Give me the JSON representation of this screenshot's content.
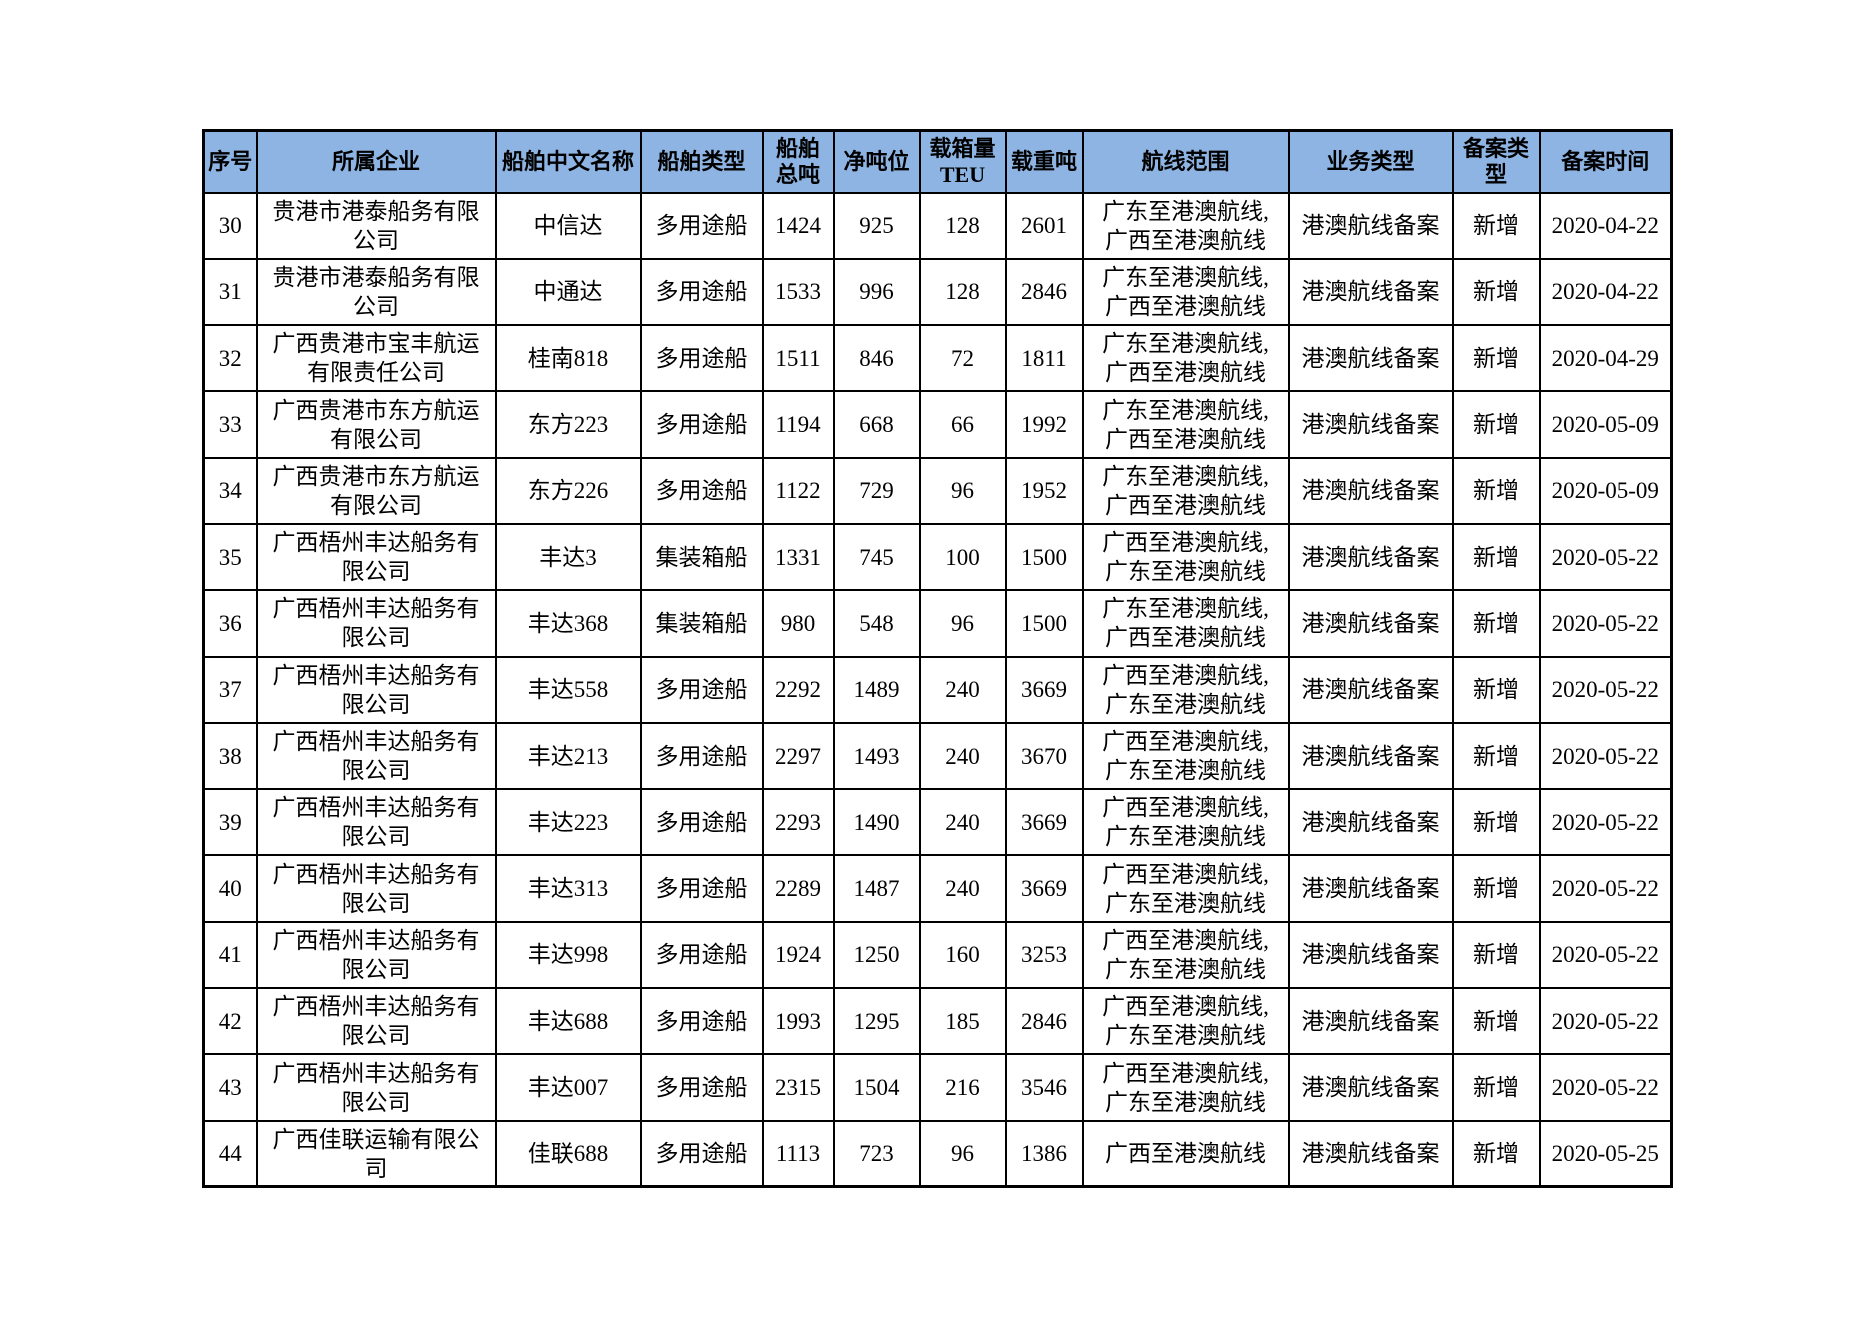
{
  "colors": {
    "header_background": "#8db4e2",
    "grid_border": "#000000",
    "page_background": "#ffffff",
    "text": "#000000"
  },
  "table": {
    "columns": [
      {
        "key": "index",
        "label": "序号"
      },
      {
        "key": "company",
        "label": "所属企业"
      },
      {
        "key": "ship_name",
        "label": "船舶中文名称"
      },
      {
        "key": "ship_type",
        "label": "船舶类型"
      },
      {
        "key": "gross_tonnage",
        "label": "船舶\n总吨"
      },
      {
        "key": "net_tonnage",
        "label": "净吨位"
      },
      {
        "key": "teu",
        "label": "载箱量\nTEU"
      },
      {
        "key": "deadweight",
        "label": "载重吨"
      },
      {
        "key": "route",
        "label": "航线范围"
      },
      {
        "key": "business_type",
        "label": "业务类型"
      },
      {
        "key": "filing_type",
        "label": "备案类\n型"
      },
      {
        "key": "filing_date",
        "label": "备案时间"
      }
    ],
    "rows": [
      {
        "index": "30",
        "company": "贵港市港泰船务有限\n公司",
        "ship_name": "中信达",
        "ship_type": "多用途船",
        "gross_tonnage": "1424",
        "net_tonnage": "925",
        "teu": "128",
        "deadweight": "2601",
        "route": "广东至港澳航线,\n广西至港澳航线",
        "business_type": "港澳航线备案",
        "filing_type": "新增",
        "filing_date": "2020-04-22"
      },
      {
        "index": "31",
        "company": "贵港市港泰船务有限\n公司",
        "ship_name": "中通达",
        "ship_type": "多用途船",
        "gross_tonnage": "1533",
        "net_tonnage": "996",
        "teu": "128",
        "deadweight": "2846",
        "route": "广东至港澳航线,\n广西至港澳航线",
        "business_type": "港澳航线备案",
        "filing_type": "新增",
        "filing_date": "2020-04-22"
      },
      {
        "index": "32",
        "company": "广西贵港市宝丰航运\n有限责任公司",
        "ship_name": "桂南818",
        "ship_type": "多用途船",
        "gross_tonnage": "1511",
        "net_tonnage": "846",
        "teu": "72",
        "deadweight": "1811",
        "route": "广东至港澳航线,\n广西至港澳航线",
        "business_type": "港澳航线备案",
        "filing_type": "新增",
        "filing_date": "2020-04-29"
      },
      {
        "index": "33",
        "company": "广西贵港市东方航运\n有限公司",
        "ship_name": "东方223",
        "ship_type": "多用途船",
        "gross_tonnage": "1194",
        "net_tonnage": "668",
        "teu": "66",
        "deadweight": "1992",
        "route": "广东至港澳航线,\n广西至港澳航线",
        "business_type": "港澳航线备案",
        "filing_type": "新增",
        "filing_date": "2020-05-09"
      },
      {
        "index": "34",
        "company": "广西贵港市东方航运\n有限公司",
        "ship_name": "东方226",
        "ship_type": "多用途船",
        "gross_tonnage": "1122",
        "net_tonnage": "729",
        "teu": "96",
        "deadweight": "1952",
        "route": "广东至港澳航线,\n广西至港澳航线",
        "business_type": "港澳航线备案",
        "filing_type": "新增",
        "filing_date": "2020-05-09"
      },
      {
        "index": "35",
        "company": "广西梧州丰达船务有\n限公司",
        "ship_name": "丰达3",
        "ship_type": "集装箱船",
        "gross_tonnage": "1331",
        "net_tonnage": "745",
        "teu": "100",
        "deadweight": "1500",
        "route": "广西至港澳航线,\n广东至港澳航线",
        "business_type": "港澳航线备案",
        "filing_type": "新增",
        "filing_date": "2020-05-22"
      },
      {
        "index": "36",
        "company": "广西梧州丰达船务有\n限公司",
        "ship_name": "丰达368",
        "ship_type": "集装箱船",
        "gross_tonnage": "980",
        "net_tonnage": "548",
        "teu": "96",
        "deadweight": "1500",
        "route": "广东至港澳航线,\n广西至港澳航线",
        "business_type": "港澳航线备案",
        "filing_type": "新增",
        "filing_date": "2020-05-22"
      },
      {
        "index": "37",
        "company": "广西梧州丰达船务有\n限公司",
        "ship_name": "丰达558",
        "ship_type": "多用途船",
        "gross_tonnage": "2292",
        "net_tonnage": "1489",
        "teu": "240",
        "deadweight": "3669",
        "route": "广西至港澳航线,\n广东至港澳航线",
        "business_type": "港澳航线备案",
        "filing_type": "新增",
        "filing_date": "2020-05-22"
      },
      {
        "index": "38",
        "company": "广西梧州丰达船务有\n限公司",
        "ship_name": "丰达213",
        "ship_type": "多用途船",
        "gross_tonnage": "2297",
        "net_tonnage": "1493",
        "teu": "240",
        "deadweight": "3670",
        "route": "广西至港澳航线,\n广东至港澳航线",
        "business_type": "港澳航线备案",
        "filing_type": "新增",
        "filing_date": "2020-05-22"
      },
      {
        "index": "39",
        "company": "广西梧州丰达船务有\n限公司",
        "ship_name": "丰达223",
        "ship_type": "多用途船",
        "gross_tonnage": "2293",
        "net_tonnage": "1490",
        "teu": "240",
        "deadweight": "3669",
        "route": "广西至港澳航线,\n广东至港澳航线",
        "business_type": "港澳航线备案",
        "filing_type": "新增",
        "filing_date": "2020-05-22"
      },
      {
        "index": "40",
        "company": "广西梧州丰达船务有\n限公司",
        "ship_name": "丰达313",
        "ship_type": "多用途船",
        "gross_tonnage": "2289",
        "net_tonnage": "1487",
        "teu": "240",
        "deadweight": "3669",
        "route": "广西至港澳航线,\n广东至港澳航线",
        "business_type": "港澳航线备案",
        "filing_type": "新增",
        "filing_date": "2020-05-22"
      },
      {
        "index": "41",
        "company": "广西梧州丰达船务有\n限公司",
        "ship_name": "丰达998",
        "ship_type": "多用途船",
        "gross_tonnage": "1924",
        "net_tonnage": "1250",
        "teu": "160",
        "deadweight": "3253",
        "route": "广西至港澳航线,\n广东至港澳航线",
        "business_type": "港澳航线备案",
        "filing_type": "新增",
        "filing_date": "2020-05-22"
      },
      {
        "index": "42",
        "company": "广西梧州丰达船务有\n限公司",
        "ship_name": "丰达688",
        "ship_type": "多用途船",
        "gross_tonnage": "1993",
        "net_tonnage": "1295",
        "teu": "185",
        "deadweight": "2846",
        "route": "广西至港澳航线,\n广东至港澳航线",
        "business_type": "港澳航线备案",
        "filing_type": "新增",
        "filing_date": "2020-05-22"
      },
      {
        "index": "43",
        "company": "广西梧州丰达船务有\n限公司",
        "ship_name": "丰达007",
        "ship_type": "多用途船",
        "gross_tonnage": "2315",
        "net_tonnage": "1504",
        "teu": "216",
        "deadweight": "3546",
        "route": "广西至港澳航线,\n广东至港澳航线",
        "business_type": "港澳航线备案",
        "filing_type": "新增",
        "filing_date": "2020-05-22"
      },
      {
        "index": "44",
        "company": "广西佳联运输有限公\n司",
        "ship_name": "佳联688",
        "ship_type": "多用途船",
        "gross_tonnage": "1113",
        "net_tonnage": "723",
        "teu": "96",
        "deadweight": "1386",
        "route": "广西至港澳航线",
        "business_type": "港澳航线备案",
        "filing_type": "新增",
        "filing_date": "2020-05-25"
      }
    ]
  }
}
